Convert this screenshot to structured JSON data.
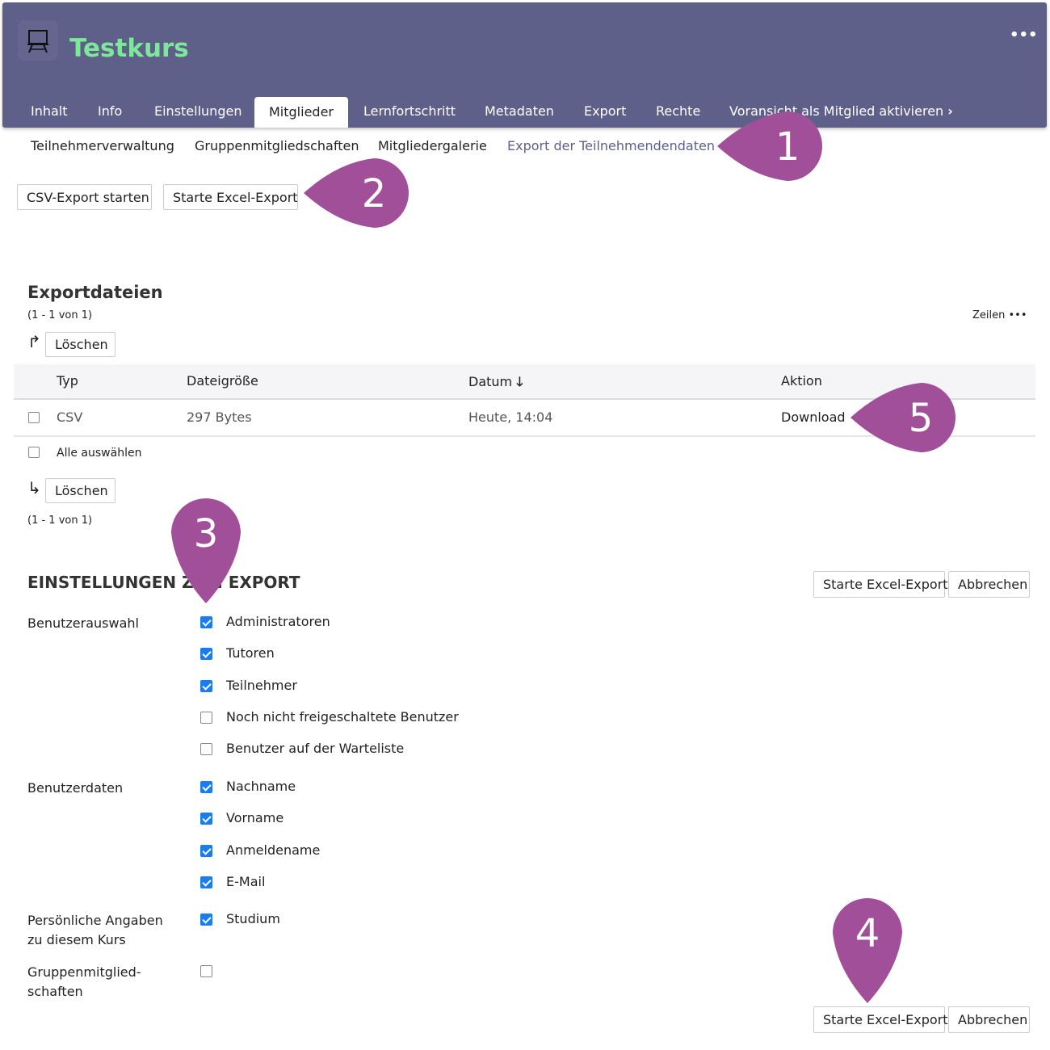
{
  "header": {
    "title": "Testkurs",
    "icon": "presentation-board-icon",
    "more": "•••",
    "bg_color": "#5f6089",
    "title_color": "#7ee89a"
  },
  "tabs": [
    {
      "label": "Inhalt"
    },
    {
      "label": "Info"
    },
    {
      "label": "Einstellungen"
    },
    {
      "label": "Mitglieder",
      "active": true
    },
    {
      "label": "Lernfortschritt"
    },
    {
      "label": "Metadaten"
    },
    {
      "label": "Export"
    },
    {
      "label": "Rechte"
    },
    {
      "label": "Voransicht als Mitglied aktivieren"
    }
  ],
  "subtabs": [
    {
      "label": "Teilnehmerverwaltung"
    },
    {
      "label": "Gruppenmitgliedschaften"
    },
    {
      "label": "Mitgliedergalerie"
    },
    {
      "label": "Export der Teilnehmendendaten",
      "active": true
    }
  ],
  "actions": {
    "csv": "CSV-Export starten",
    "excel": "Starte Excel-Export"
  },
  "exportfiles": {
    "title": "Exportdateien",
    "count": "(1 - 1 von 1)",
    "rows_label": "Zeilen •••",
    "delete": "Löschen",
    "select_all": "Alle auswählen",
    "columns": [
      "Typ",
      "Dateigröße",
      "Datum",
      "Aktion"
    ],
    "rows": [
      {
        "type": "CSV",
        "size": "297 Bytes",
        "date": "Heute, 14:04",
        "action": "Download"
      }
    ]
  },
  "settings": {
    "title": "EINSTELLUNGEN ZUM EXPORT",
    "start": "Starte Excel-Export",
    "cancel": "Abbrechen",
    "groups": [
      {
        "label": "Benutzerauswahl",
        "options": [
          {
            "label": "Administratoren",
            "checked": true
          },
          {
            "label": "Tutoren",
            "checked": true
          },
          {
            "label": "Teilnehmer",
            "checked": true
          },
          {
            "label": "Noch nicht freigeschaltete Benutzer",
            "checked": false
          },
          {
            "label": "Benutzer auf der Warteliste",
            "checked": false
          }
        ]
      },
      {
        "label": "Benutzerdaten",
        "options": [
          {
            "label": "Nachname",
            "checked": true
          },
          {
            "label": "Vorname",
            "checked": true
          },
          {
            "label": "Anmeldename",
            "checked": true
          },
          {
            "label": "E-Mail",
            "checked": true
          }
        ]
      },
      {
        "label": "Persönliche Angaben zu diesem Kurs",
        "options": [
          {
            "label": "Studium",
            "checked": true
          }
        ]
      },
      {
        "label": "Gruppenmitglied-schaften",
        "options": [
          {
            "label": "",
            "checked": false
          }
        ]
      }
    ]
  },
  "markers": [
    {
      "n": "1"
    },
    {
      "n": "2"
    },
    {
      "n": "3"
    },
    {
      "n": "4"
    },
    {
      "n": "5"
    }
  ],
  "marker_color": "#a04f98"
}
